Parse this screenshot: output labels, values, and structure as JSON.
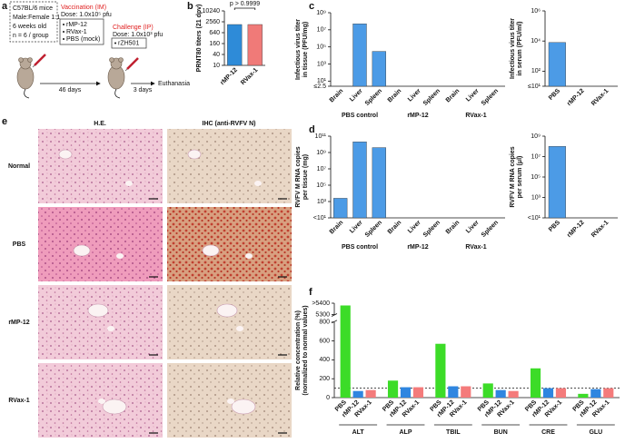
{
  "panel_labels": [
    "a",
    "b",
    "c",
    "d",
    "e",
    "f"
  ],
  "design": {
    "mice": [
      "C57BL/6 mice",
      "Male:Female 1:1",
      "6 weeks old",
      "n = 6 / group"
    ],
    "vaccination": "Vaccination (IM)",
    "vaccination_dose": "Dose: 1.0x10⁵ pfu",
    "vaccines": [
      "rMP-12",
      "RVax-1",
      "PBS (mock)"
    ],
    "challenge": "Challenge (IP)",
    "challenge_dose": "Dose: 1.0x10³ pfu",
    "challenge_virus": "rZH501",
    "interval_1": "46 days",
    "interval_2": "3 days",
    "end": "Euthanasia"
  },
  "histology": {
    "columns": [
      "H.E.",
      "IHC (anti-RVFV N)"
    ],
    "rows": [
      "Normal",
      "PBS",
      "rMP-12",
      "RVax-1"
    ]
  },
  "chart_data": [
    {
      "type": "bar",
      "ylabel": [
        "PRNT80 titers (21 dpv)"
      ],
      "annotation": "p > 0.9999",
      "categories": [
        "rMP-12",
        "RVax-1"
      ],
      "values": [
        1810,
        1810
      ],
      "colors": [
        "#2e8bd8",
        "#f07a78"
      ],
      "log_scale": true,
      "ylim": [
        10,
        10240
      ],
      "yticks": [
        10,
        40,
        160,
        640,
        2560,
        10240
      ]
    },
    {
      "type": "bar",
      "ylabel": [
        "Infectious virus titer",
        "in tissue (PFU/mg)"
      ],
      "categories": [
        "Brain",
        "Liver",
        "Spleen",
        "Brain",
        "Liver",
        "Spleen",
        "Brain",
        "Liver",
        "Spleen"
      ],
      "groups": [
        "PBS control",
        "rMP-12",
        "RVax-1"
      ],
      "values": [
        2.5,
        50000000,
        30000,
        2.5,
        2.5,
        2.5,
        2.5,
        2.5,
        2.5
      ],
      "color": "#4c9be6",
      "log_scale": true,
      "ylim": [
        2.5,
        1000000000
      ],
      "yticks": [
        {
          "value": 2.5,
          "label": "≤2.5"
        },
        {
          "value": 10,
          "label": "10¹"
        },
        {
          "value": 1000,
          "label": "10³"
        },
        {
          "value": 100000,
          "label": "10⁵"
        },
        {
          "value": 10000000,
          "label": "10⁷"
        },
        {
          "value": 1000000000,
          "label": "10⁹"
        }
      ]
    },
    {
      "type": "bar",
      "ylabel": [
        "Infectious virus titer",
        "in serum (PFU/ml)"
      ],
      "categories": [
        "PBS",
        "rMP-12",
        "RVax-1"
      ],
      "values": [
        8000,
        10,
        10
      ],
      "color": "#4c9be6",
      "log_scale": true,
      "ylim": [
        10,
        1000000
      ],
      "yticks": [
        {
          "value": 10,
          "label": "≤10¹"
        },
        {
          "value": 100,
          "label": "10²"
        },
        {
          "value": 10000,
          "label": "10⁴"
        },
        {
          "value": 1000000,
          "label": "10⁶"
        }
      ]
    },
    {
      "type": "bar",
      "ylabel": [
        "RVFV M RNA copies",
        "per tissue (mg)"
      ],
      "categories": [
        "Brain",
        "Liver",
        "Spleen",
        "Brain",
        "Liver",
        "Spleen",
        "Brain",
        "Liver",
        "Spleen"
      ],
      "groups": [
        "PBS control",
        "rMP-12",
        "RVax-1"
      ],
      "values": [
        2500,
        20000000000,
        4000000000,
        10,
        10,
        10,
        10,
        10,
        10
      ],
      "color": "#4c9be6",
      "log_scale": true,
      "ylim": [
        10,
        100000000000
      ],
      "yticks": [
        {
          "value": 10,
          "label": "<10¹"
        },
        {
          "value": 1000,
          "label": "10³"
        },
        {
          "value": 100000,
          "label": "10⁵"
        },
        {
          "value": 10000000,
          "label": "10⁷"
        },
        {
          "value": 1000000000,
          "label": "10⁹"
        },
        {
          "value": 100000000000,
          "label": "10¹¹"
        }
      ]
    },
    {
      "type": "bar",
      "ylabel": [
        "RVFV M RNA copies",
        "per serum (μl)"
      ],
      "categories": [
        "PBS",
        "rMP-12",
        "RVax-1"
      ],
      "values": [
        100000000,
        10,
        10
      ],
      "color": "#4c9be6",
      "log_scale": true,
      "ylim": [
        10,
        1000000000
      ],
      "yticks": [
        {
          "value": 10,
          "label": "<10¹"
        },
        {
          "value": 1000,
          "label": "10³"
        },
        {
          "value": 100000,
          "label": "10⁵"
        },
        {
          "value": 10000000,
          "label": "10⁷"
        },
        {
          "value": 1000000000,
          "label": "10⁹"
        }
      ]
    },
    {
      "type": "bar",
      "ylabel": [
        "Relative concentration (%)",
        "(normalized to normal values)"
      ],
      "categories": [
        "ALT",
        "ALP",
        "TBIL",
        "BUN",
        "CRE",
        "GLU"
      ],
      "series": [
        {
          "name": "PBS",
          "color": "#3cdc28",
          "values": [
            5380,
            180,
            570,
            150,
            310,
            40
          ]
        },
        {
          "name": "rMP-12",
          "color": "#2f86e0",
          "values": [
            70,
            110,
            120,
            80,
            100,
            90
          ]
        },
        {
          "name": "RVax-1",
          "color": "#f47b7b",
          "values": [
            80,
            110,
            120,
            70,
            100,
            100
          ]
        }
      ],
      "axis_break": [
        800,
        5300
      ],
      "reference_line": 100,
      "ylim": [
        0,
        5400
      ],
      "yticks": [
        0,
        200,
        400,
        600,
        800,
        5300,
        {
          "value": 5400,
          "label": ">5400"
        }
      ]
    }
  ]
}
